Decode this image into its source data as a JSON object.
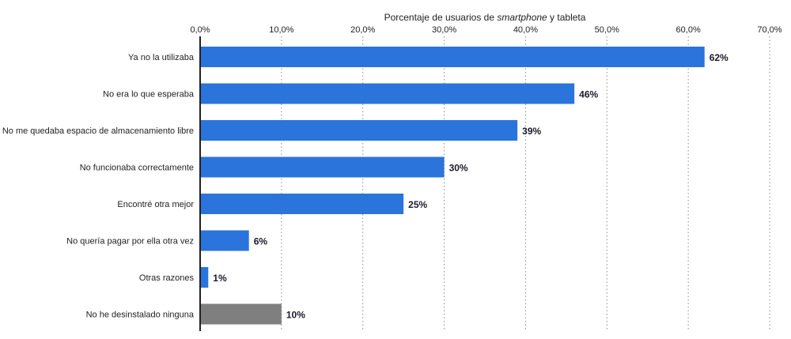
{
  "chart_data": {
    "type": "bar",
    "orientation": "horizontal",
    "xlabel_parts": [
      {
        "text": "Porcentaje de usuarios de ",
        "italic": false
      },
      {
        "text": "smartphone",
        "italic": true
      },
      {
        "text": " y tableta",
        "italic": false
      }
    ],
    "xlabel_position": "top",
    "xlim": [
      0,
      70
    ],
    "ticks": [
      0,
      10,
      20,
      30,
      40,
      50,
      60,
      70
    ],
    "tick_labels": [
      "0,0%",
      "10,0%",
      "20,0%",
      "30,0%",
      "40,0%",
      "50,0%",
      "60,0%",
      "70,0%"
    ],
    "grid": true,
    "categories": [
      "Ya no la utilizaba",
      "No era lo que esperaba",
      "No me quedaba espacio de almacenamiento libre",
      "No funcionaba correctamente",
      "Encontré otra mejor",
      "No quería pagar por ella otra vez",
      "Otras razones",
      "No he desinstalado ninguna"
    ],
    "values": [
      62,
      46,
      39,
      30,
      25,
      6,
      1,
      10
    ],
    "value_labels": [
      "62%",
      "46%",
      "39%",
      "30%",
      "25%",
      "6%",
      "1%",
      "10%"
    ],
    "colors": [
      "#2a74dc",
      "#2a74dc",
      "#2a74dc",
      "#2a74dc",
      "#2a74dc",
      "#2a74dc",
      "#2a74dc",
      "#7f7f7f"
    ]
  }
}
